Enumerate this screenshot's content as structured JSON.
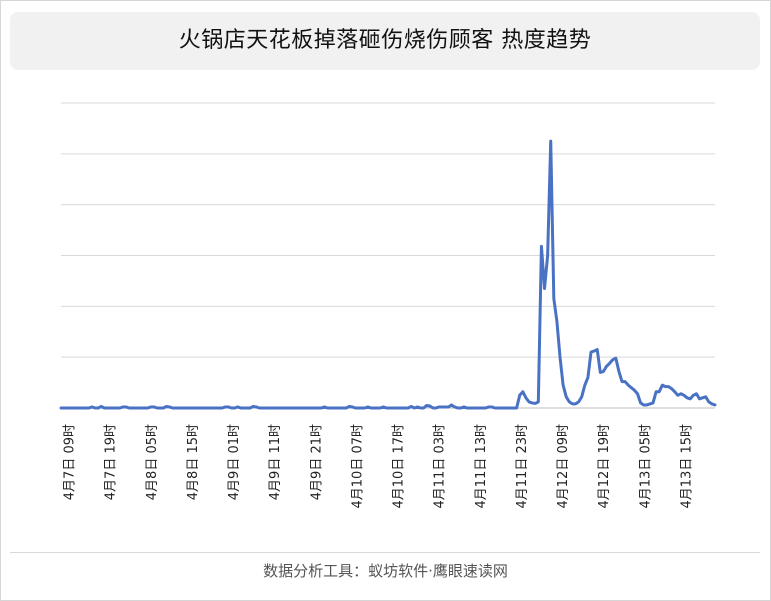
{
  "title": "火锅店天花板掉落砸伤烧伤顾客 热度趋势",
  "footer": "数据分析工具：蚁坊软件·鹰眼速读网",
  "colors": {
    "line": "#4a72c4",
    "grid": "#d9d9d9",
    "axis": "#bfbfbf"
  },
  "chart_data": {
    "type": "line",
    "title": "火锅店天花板掉落砸伤烧伤顾客 热度趋势",
    "xlabel": "",
    "ylabel": "",
    "ylim": [
      0,
      6
    ],
    "gridlines": true,
    "y_tick_labels_shown": false,
    "x_tick_labels": [
      "4月7日 09时",
      "4月7日 19时",
      "4月8日 05时",
      "4月8日 15时",
      "4月9日 01时",
      "4月9日 11时",
      "4月9日 21时",
      "4月10日 07时",
      "4月10日 17时",
      "4月11日 03时",
      "4月11日 13时",
      "4月11日 23时",
      "4月12日 09时",
      "4月12日 19时",
      "4月13日 05时",
      "4月13日 15时"
    ],
    "series": [
      {
        "values": [
          0,
          0,
          0,
          0,
          0,
          0,
          0,
          0,
          0,
          0,
          0.02,
          0,
          0,
          0.03,
          0,
          0,
          0,
          0,
          0,
          0,
          0.02,
          0.02,
          0,
          0,
          0,
          0,
          0,
          0,
          0,
          0.02,
          0.02,
          0,
          0,
          0,
          0.03,
          0.02,
          0,
          0,
          0,
          0,
          0,
          0,
          0,
          0,
          0,
          0,
          0,
          0,
          0,
          0,
          0,
          0,
          0,
          0.02,
          0.02,
          0,
          0,
          0.02,
          0,
          0,
          0,
          0,
          0.03,
          0.02,
          0,
          0,
          0,
          0,
          0,
          0,
          0,
          0,
          0,
          0,
          0,
          0,
          0,
          0,
          0,
          0,
          0,
          0,
          0,
          0,
          0,
          0.02,
          0,
          0,
          0,
          0,
          0,
          0,
          0,
          0.03,
          0.02,
          0,
          0,
          0,
          0,
          0.02,
          0,
          0,
          0,
          0,
          0.02,
          0,
          0,
          0,
          0,
          0,
          0,
          0,
          0,
          0.03,
          0,
          0.02,
          0,
          0,
          0.05,
          0.04,
          0,
          0,
          0.02,
          0.02,
          0.02,
          0.02,
          0.06,
          0.02,
          0,
          0,
          0.02,
          0,
          0,
          0,
          0,
          0,
          0,
          0,
          0.02,
          0.02,
          0,
          0,
          0,
          0,
          0,
          0,
          0,
          0,
          0.25,
          0.32,
          0.2,
          0.12,
          0.1,
          0.09,
          0.12,
          3.18,
          2.35,
          3.0,
          5.25,
          2.15,
          1.7,
          1.0,
          0.45,
          0.22,
          0.12,
          0.08,
          0.08,
          0.12,
          0.22,
          0.45,
          0.6,
          1.1,
          1.12,
          1.15,
          0.7,
          0.72,
          0.82,
          0.88,
          0.95,
          0.98,
          0.72,
          0.52,
          0.52,
          0.45,
          0.4,
          0.35,
          0.28,
          0.1,
          0.06,
          0.06,
          0.08,
          0.1,
          0.32,
          0.32,
          0.45,
          0.42,
          0.42,
          0.38,
          0.32,
          0.25,
          0.28,
          0.25,
          0.2,
          0.18,
          0.25,
          0.28,
          0.18,
          0.2,
          0.22,
          0.12,
          0.08,
          0.06
        ]
      }
    ]
  }
}
